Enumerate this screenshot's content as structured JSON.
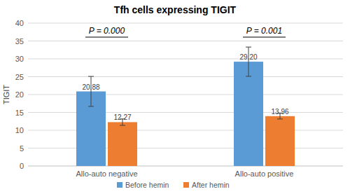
{
  "chart_data": {
    "type": "bar",
    "title": "Tfh cells expressing TIGIT",
    "y_label": "TIGIT",
    "categories": [
      "Allo-auto negative",
      "Allo-auto positive"
    ],
    "series": [
      {
        "name": "Before hemin",
        "color": "#5b9bd5",
        "values": [
          20.88,
          29.2
        ],
        "value_labels": [
          "20.88",
          "29.20"
        ],
        "errors": [
          4.2,
          4.1
        ]
      },
      {
        "name": "After hemin",
        "color": "#ed7d31",
        "values": [
          12.27,
          13.96
        ],
        "value_labels": [
          "12.27",
          "13.96"
        ],
        "errors": [
          0.9,
          0.8
        ]
      }
    ],
    "annotations": [
      "P = 0.000",
      "P = 0.001"
    ],
    "ylim": [
      0,
      40
    ],
    "yticks": [
      0,
      5,
      10,
      15,
      20,
      25,
      30,
      35,
      40
    ],
    "grid": true,
    "data_labels": true,
    "legend": "bottom"
  }
}
